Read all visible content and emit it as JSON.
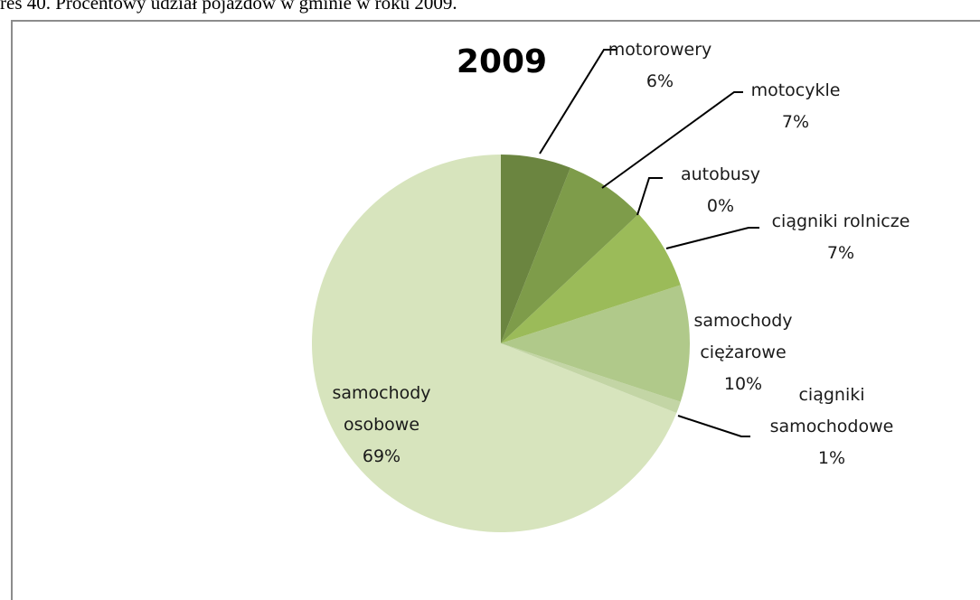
{
  "chart_data": {
    "type": "pie",
    "caption": "res 40. Procentowy udział pojazdów w gminie w roku 2009.",
    "title": "2009",
    "categories": [
      "motorowery",
      "motocykle",
      "autobusy",
      "ciągniki rolnicze",
      "samochody ciężarowe",
      "ciągniki samochodowe",
      "samochody osobowe"
    ],
    "values": [
      6,
      7,
      0,
      7,
      10,
      1,
      69
    ],
    "value_labels": [
      "6%",
      "7%",
      "0%",
      "7%",
      "10%",
      "1%",
      "69%"
    ],
    "colors": [
      "#6b8540",
      "#7e9c4a",
      "#8fae50",
      "#9bbb59",
      "#b0c98a",
      "#c3d5a5",
      "#d7e4bd"
    ]
  }
}
